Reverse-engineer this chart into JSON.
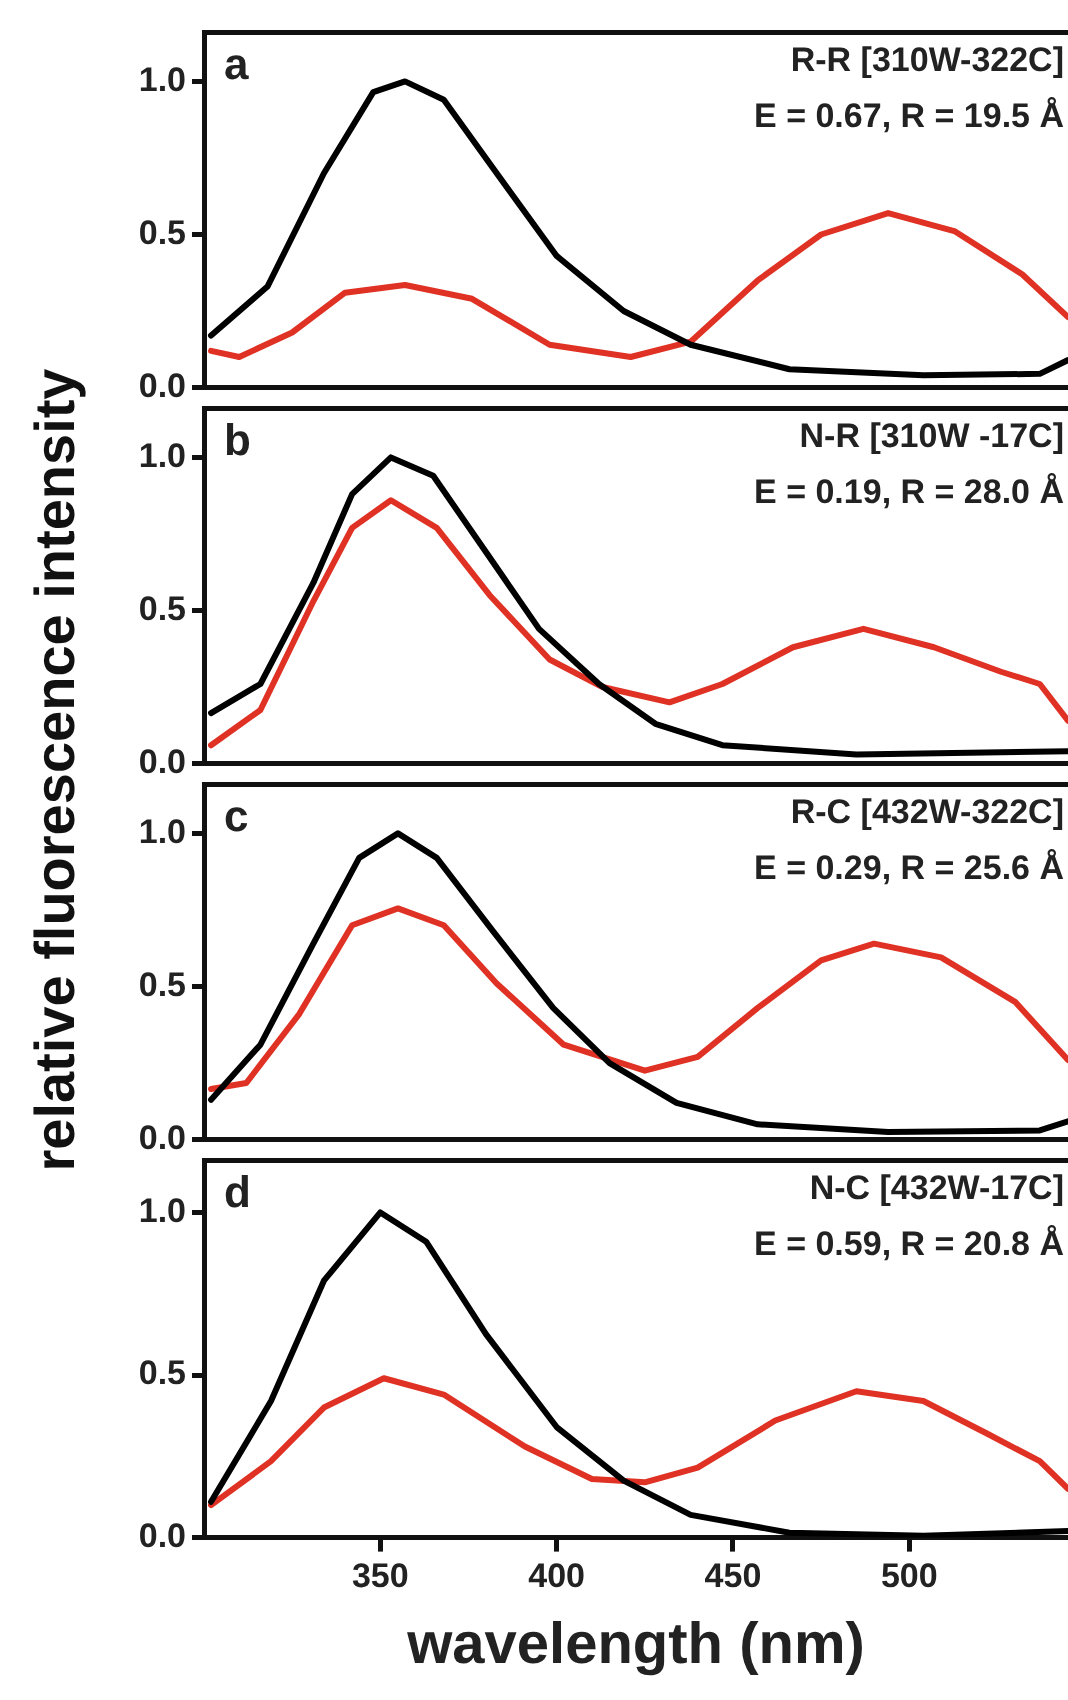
{
  "chart_data": [
    {
      "type": "line",
      "ylabel": "relative fluorescence intensity",
      "annotations": [
        "a",
        "R-R [310W-322C]",
        "E = 0.67, R = 19.5 Å"
      ],
      "xlim": [
        300,
        545
      ],
      "xticks": [
        350,
        400,
        450,
        500
      ],
      "ylim": [
        0,
        1.16
      ],
      "yticks": [
        {
          "value": 0,
          "label": "0.0"
        },
        {
          "value": 0.5,
          "label": "0.5"
        },
        {
          "value": 1,
          "label": "1.0"
        }
      ],
      "tick_labels": "y",
      "grid": false,
      "legend": false,
      "marker": "none",
      "line_style": "solid",
      "series": [
        {
          "color": "#000000",
          "x": [
            302,
            318,
            334,
            348,
            357,
            368,
            383,
            400,
            419,
            438,
            466,
            504,
            537,
            545
          ],
          "values": [
            0.17,
            0.33,
            0.7,
            0.965,
            1.0,
            0.94,
            0.7,
            0.43,
            0.25,
            0.14,
            0.06,
            0.04,
            0.045,
            0.09
          ]
        },
        {
          "color": "#e03224",
          "x": [
            302,
            310,
            325,
            340,
            357,
            376,
            398,
            421,
            438,
            457,
            475,
            494,
            513,
            532,
            545
          ],
          "values": [
            0.12,
            0.1,
            0.18,
            0.31,
            0.335,
            0.29,
            0.14,
            0.1,
            0.15,
            0.35,
            0.5,
            0.57,
            0.51,
            0.37,
            0.23
          ]
        }
      ]
    },
    {
      "type": "line",
      "annotations": [
        "b",
        "N-R [310W -17C]",
        "E = 0.19, R = 28.0 Å"
      ],
      "xlim": [
        300,
        545
      ],
      "xticks": [
        350,
        400,
        450,
        500
      ],
      "ylim": [
        0,
        1.16
      ],
      "yticks": [
        {
          "value": 0,
          "label": "0.0"
        },
        {
          "value": 0.5,
          "label": "0.5"
        },
        {
          "value": 1,
          "label": "1.0"
        }
      ],
      "tick_labels": "y",
      "grid": false,
      "legend": false,
      "marker": "none",
      "line_style": "solid",
      "series": [
        {
          "color": "#000000",
          "x": [
            302,
            316,
            331,
            342,
            353,
            365,
            380,
            395,
            412,
            428,
            447,
            485,
            545
          ],
          "values": [
            0.165,
            0.26,
            0.59,
            0.88,
            1.0,
            0.94,
            0.69,
            0.44,
            0.26,
            0.13,
            0.06,
            0.03,
            0.04
          ]
        },
        {
          "color": "#e03224",
          "x": [
            302,
            316,
            331,
            342,
            353,
            366,
            381,
            398,
            413,
            432,
            447,
            467,
            487,
            507,
            526,
            537,
            545
          ],
          "values": [
            0.06,
            0.175,
            0.53,
            0.77,
            0.86,
            0.77,
            0.55,
            0.34,
            0.25,
            0.2,
            0.26,
            0.38,
            0.44,
            0.38,
            0.3,
            0.26,
            0.14
          ]
        }
      ]
    },
    {
      "type": "line",
      "annotations": [
        "c",
        "R-C [432W-322C]",
        "E = 0.29, R = 25.6 Å"
      ],
      "xlim": [
        300,
        545
      ],
      "xticks": [
        350,
        400,
        450,
        500
      ],
      "ylim": [
        0,
        1.16
      ],
      "yticks": [
        {
          "value": 0,
          "label": "0.0"
        },
        {
          "value": 0.5,
          "label": "0.5"
        },
        {
          "value": 1,
          "label": "1.0"
        }
      ],
      "tick_labels": "y",
      "grid": false,
      "legend": false,
      "marker": "none",
      "line_style": "solid",
      "series": [
        {
          "color": "#000000",
          "x": [
            302,
            316,
            331,
            344,
            355,
            366,
            382,
            399,
            415,
            434,
            457,
            494,
            537,
            545
          ],
          "values": [
            0.13,
            0.31,
            0.64,
            0.92,
            1.0,
            0.92,
            0.68,
            0.43,
            0.25,
            0.12,
            0.05,
            0.025,
            0.03,
            0.06
          ]
        },
        {
          "color": "#e03224",
          "x": [
            302,
            312,
            327,
            342,
            355,
            368,
            383,
            402,
            425,
            440,
            457,
            475,
            490,
            509,
            530,
            545
          ],
          "values": [
            0.165,
            0.185,
            0.41,
            0.7,
            0.755,
            0.7,
            0.51,
            0.31,
            0.225,
            0.27,
            0.43,
            0.585,
            0.64,
            0.595,
            0.45,
            0.26
          ]
        }
      ]
    },
    {
      "type": "line",
      "xlabel": "wavelength (nm)",
      "annotations": [
        "d",
        "N-C [432W-17C]",
        "E = 0.59, R = 20.8 Å"
      ],
      "xlim": [
        300,
        545
      ],
      "xticks": [
        350,
        400,
        450,
        500
      ],
      "ylim": [
        0,
        1.16
      ],
      "yticks": [
        {
          "value": 0,
          "label": "0.0"
        },
        {
          "value": 0.5,
          "label": "0.5"
        },
        {
          "value": 1,
          "label": "1.0"
        }
      ],
      "grid": false,
      "legend": false,
      "marker": "none",
      "line_style": "solid",
      "series": [
        {
          "color": "#000000",
          "x": [
            302,
            319,
            334,
            350,
            363,
            380,
            400,
            419,
            438,
            466,
            504,
            545
          ],
          "values": [
            0.11,
            0.42,
            0.79,
            1.0,
            0.91,
            0.625,
            0.34,
            0.175,
            0.07,
            0.015,
            0.006,
            0.02
          ]
        },
        {
          "color": "#e03224",
          "x": [
            302,
            319,
            334,
            351,
            368,
            391,
            410,
            425,
            440,
            462,
            485,
            504,
            522,
            537,
            545
          ],
          "values": [
            0.1,
            0.235,
            0.4,
            0.49,
            0.44,
            0.28,
            0.18,
            0.17,
            0.215,
            0.36,
            0.45,
            0.42,
            0.32,
            0.235,
            0.15
          ]
        }
      ]
    }
  ]
}
